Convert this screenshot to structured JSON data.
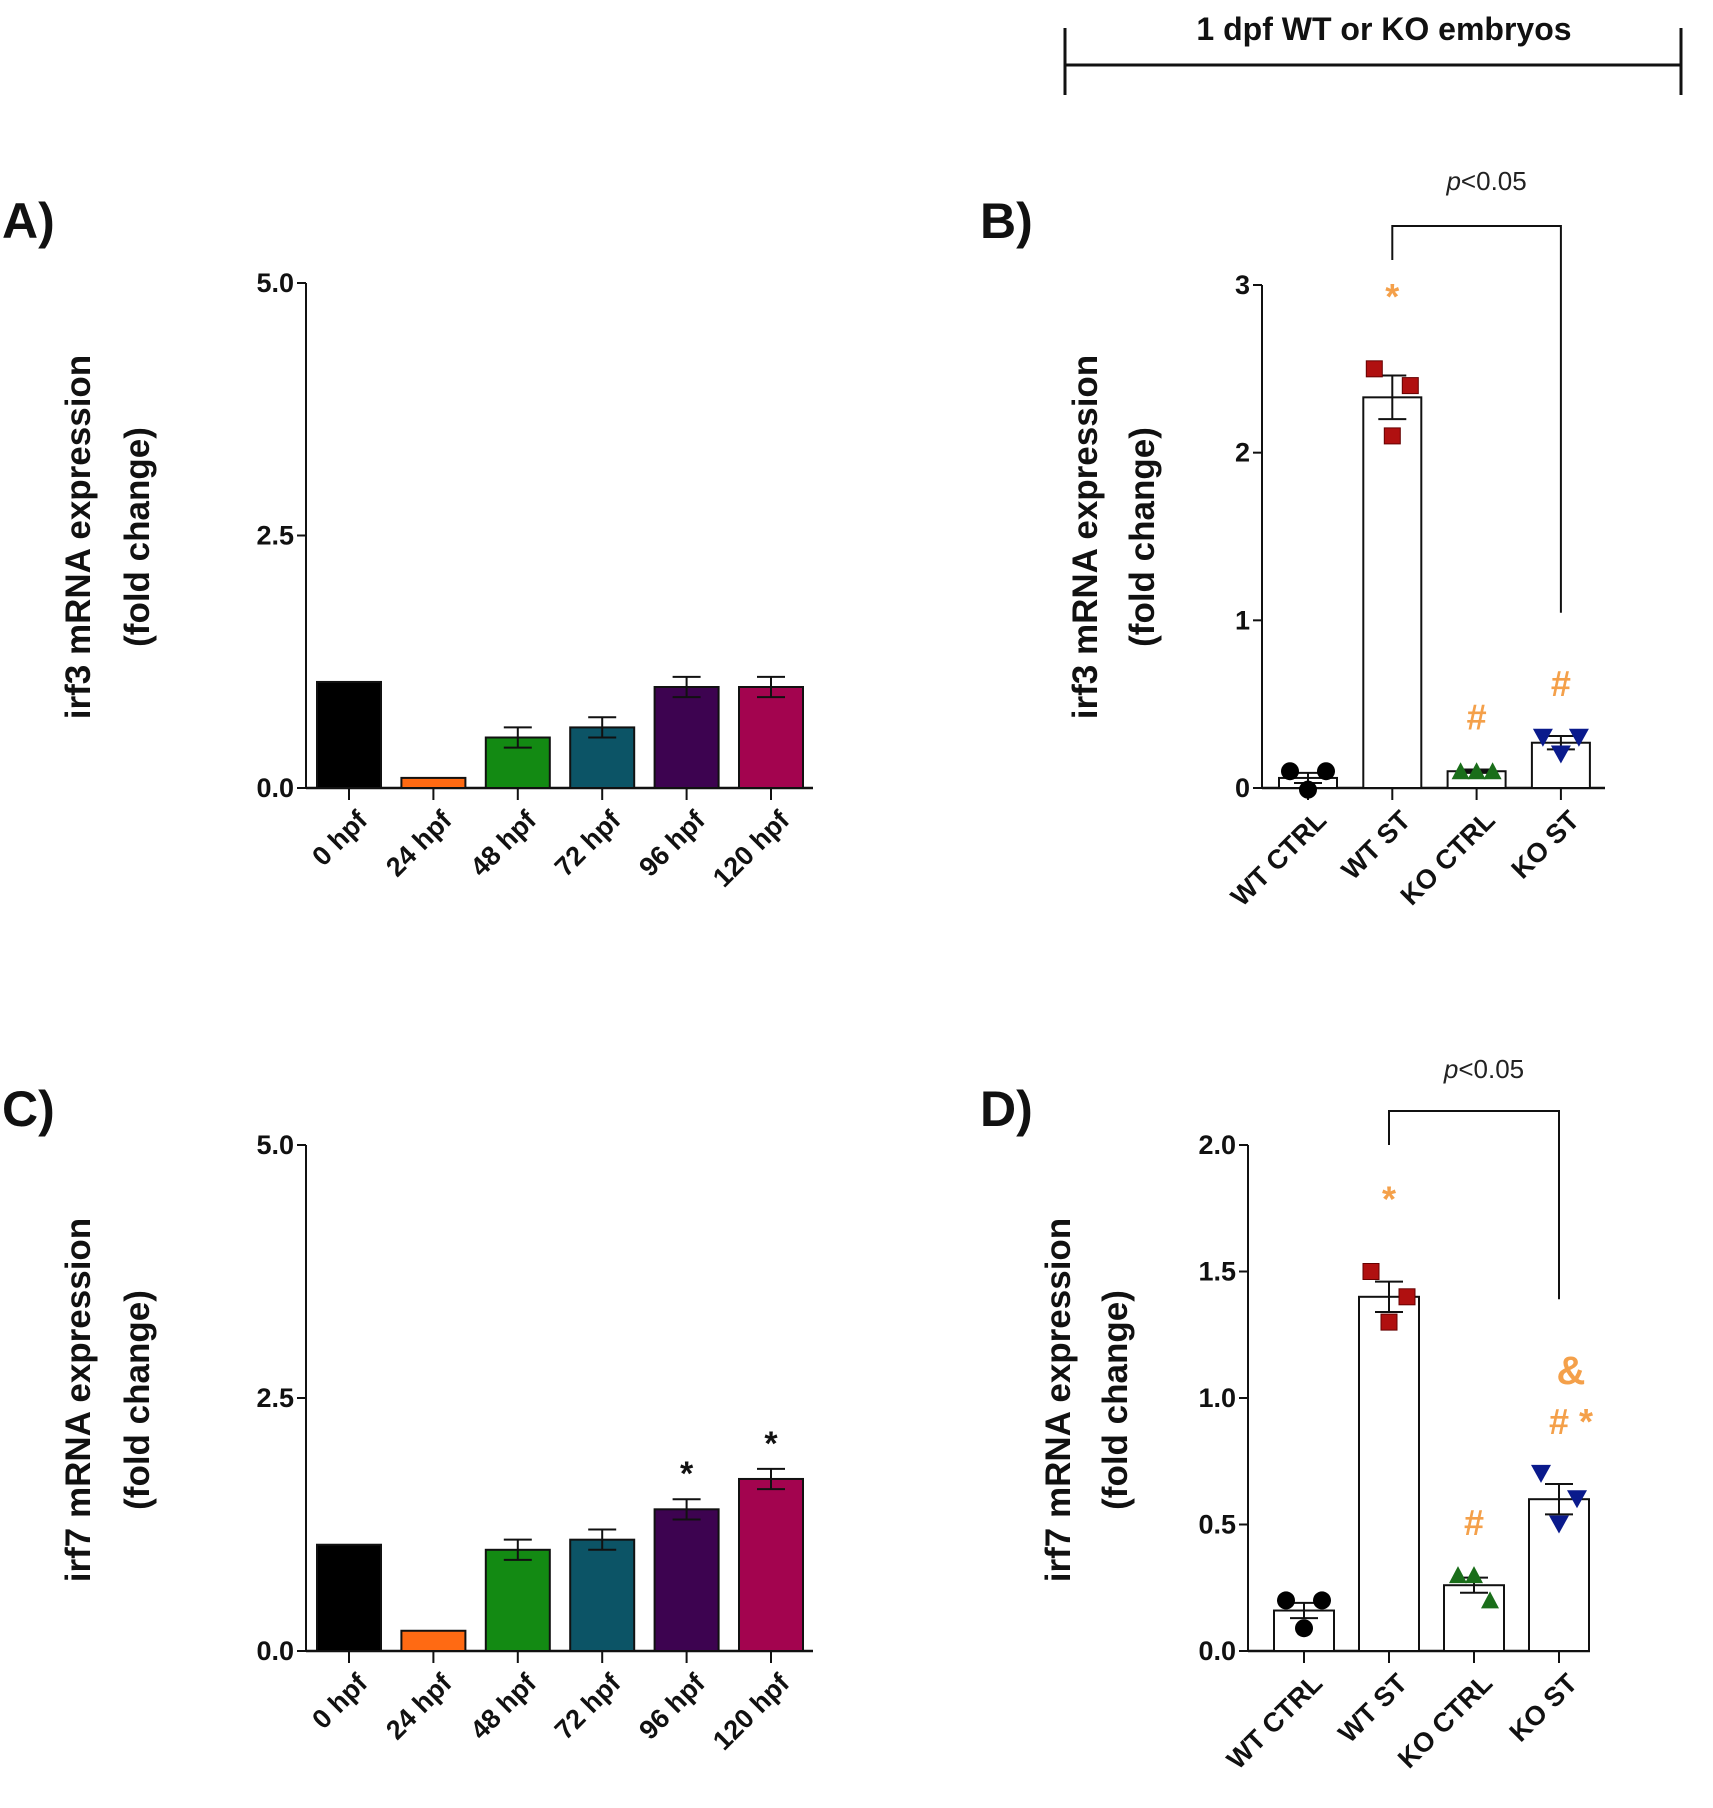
{
  "header": {
    "title": "1 dpf WT or KO embryos"
  },
  "chart_data": [
    {
      "panel": "A)",
      "type": "bar",
      "ylabel_line1": "irf3 mRNA expression",
      "ylabel_line2": "(fold change)",
      "ylim": [
        0,
        5
      ],
      "yticks": [
        "0.0",
        "2.5",
        "5.0"
      ],
      "ytick_values": [
        0,
        2.5,
        5
      ],
      "categories": [
        "0 hpf",
        "24 hpf",
        "48 hpf",
        "72 hpf",
        "96 hpf",
        "120 hpf"
      ],
      "values": [
        1.05,
        0.1,
        0.5,
        0.6,
        1.0,
        1.0
      ],
      "errors": [
        0,
        0,
        0.1,
        0.1,
        0.1,
        0.1
      ],
      "colors": [
        "#000000",
        "#ff6a13",
        "#138a13",
        "#0c5466",
        "#3d0350",
        "#a3044f"
      ],
      "annotations": [
        "",
        "",
        "",
        "",
        "",
        ""
      ]
    },
    {
      "panel": "B)",
      "type": "bar",
      "ylabel_line1": "irf3 mRNA expression",
      "ylabel_line2": "(fold change)",
      "ylim": [
        0,
        3
      ],
      "yticks": [
        "0",
        "1",
        "2",
        "3"
      ],
      "ytick_values": [
        0,
        1,
        2,
        3
      ],
      "categories": [
        "WT CTRL",
        "WT ST",
        "KO CTRL",
        "KO ST"
      ],
      "values": [
        0.06,
        2.33,
        0.1,
        0.27
      ],
      "errors": [
        0.03,
        0.13,
        0.01,
        0.04
      ],
      "points": [
        [
          0.1,
          0.1,
          -0.01
        ],
        [
          2.5,
          2.4,
          2.1
        ],
        [
          0.1,
          0.1,
          0.1
        ],
        [
          0.3,
          0.3,
          0.2
        ]
      ],
      "markers": [
        "circle",
        "square",
        "triangle-up",
        "triangle-down"
      ],
      "marker_colors": [
        "#000000",
        "#b01010",
        "#1a6e1a",
        "#0a1a8c"
      ],
      "annotations": [
        "",
        "*",
        "#",
        "#"
      ],
      "bracket": {
        "from": "WT ST",
        "to": "KO ST",
        "label_p": "p",
        "label_rest": "<0.05"
      }
    },
    {
      "panel": "C)",
      "type": "bar",
      "ylabel_line1": "irf7 mRNA expression",
      "ylabel_line2": "(fold change)",
      "ylim": [
        0,
        5
      ],
      "yticks": [
        "0.0",
        "2.5",
        "5.0"
      ],
      "ytick_values": [
        0,
        2.5,
        5
      ],
      "categories": [
        "0 hpf",
        "24 hpf",
        "48 hpf",
        "72 hpf",
        "96 hpf",
        "120 hpf"
      ],
      "values": [
        1.05,
        0.2,
        1.0,
        1.1,
        1.4,
        1.7
      ],
      "errors": [
        0,
        0,
        0.1,
        0.1,
        0.1,
        0.1
      ],
      "colors": [
        "#000000",
        "#ff6a13",
        "#138a13",
        "#0c5466",
        "#3d0350",
        "#a3044f"
      ],
      "annotations": [
        "",
        "",
        "",
        "",
        "*",
        "*"
      ]
    },
    {
      "panel": "D)",
      "type": "bar",
      "ylabel_line1": "irf7 mRNA expression",
      "ylabel_line2": "(fold change)",
      "ylim": [
        0,
        2
      ],
      "yticks": [
        "0.0",
        "0.5",
        "1.0",
        "1.5",
        "2.0"
      ],
      "ytick_values": [
        0,
        0.5,
        1,
        1.5,
        2
      ],
      "categories": [
        "WT CTRL",
        "WT ST",
        "KO CTRL",
        "KO ST"
      ],
      "values": [
        0.16,
        1.4,
        0.26,
        0.6
      ],
      "errors": [
        0.03,
        0.06,
        0.03,
        0.06
      ],
      "points": [
        [
          0.2,
          0.2,
          0.09
        ],
        [
          1.5,
          1.4,
          1.3
        ],
        [
          0.3,
          0.3,
          0.2
        ],
        [
          0.7,
          0.6,
          0.5
        ]
      ],
      "markers": [
        "circle",
        "square",
        "triangle-up",
        "triangle-down"
      ],
      "marker_colors": [
        "#000000",
        "#b01010",
        "#1a6e1a",
        "#0a1a8c"
      ],
      "annotations": [
        "",
        "*",
        "#",
        "# *"
      ],
      "extra_annotation": "&",
      "bracket": {
        "from": "WT ST",
        "to": "KO ST",
        "label_p": "p",
        "label_rest": "<0.05"
      }
    }
  ],
  "colors": {
    "annotation": "#f4a04a",
    "axis": "#111111"
  }
}
